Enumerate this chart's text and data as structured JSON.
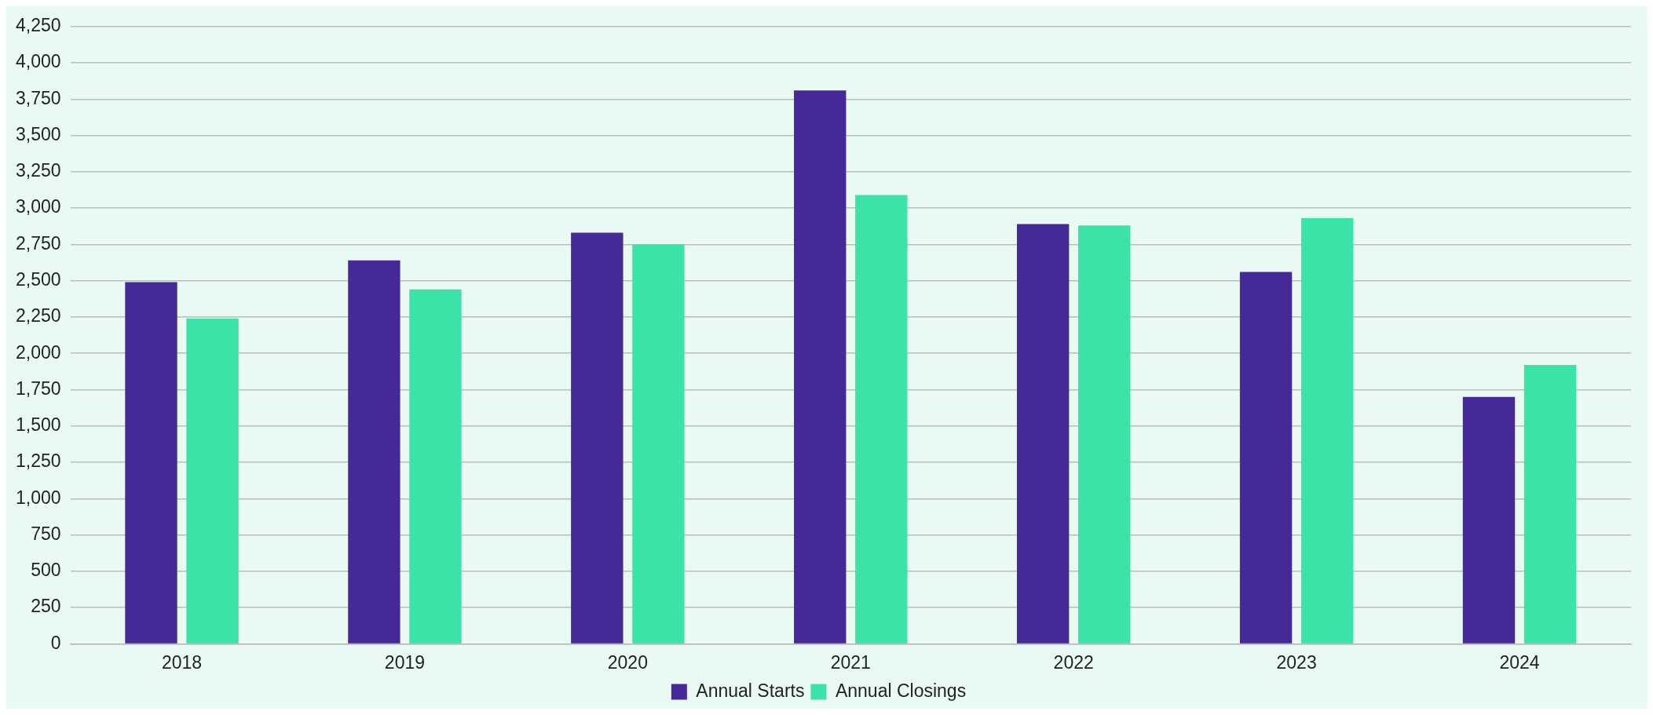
{
  "chart_data": {
    "type": "bar",
    "categories": [
      "2018",
      "2019",
      "2020",
      "2021",
      "2022",
      "2023",
      "2024"
    ],
    "series": [
      {
        "name": "Annual Starts",
        "color": "#452996",
        "values": [
          2490,
          2640,
          2830,
          3810,
          2890,
          2560,
          1700
        ]
      },
      {
        "name": "Annual Closings",
        "color": "#3be3a6",
        "values": [
          2240,
          2440,
          2750,
          3090,
          2880,
          2930,
          1920
        ]
      }
    ],
    "ylim": [
      0,
      4250
    ],
    "yticks": [
      {
        "value": 0,
        "label": "0"
      },
      {
        "value": 250,
        "label": "250"
      },
      {
        "value": 500,
        "label": "500"
      },
      {
        "value": 750,
        "label": "750"
      },
      {
        "value": 1000,
        "label": "1,000"
      },
      {
        "value": 1250,
        "label": "1,250"
      },
      {
        "value": 1500,
        "label": "1,500"
      },
      {
        "value": 1750,
        "label": "1,750"
      },
      {
        "value": 2000,
        "label": "2,000"
      },
      {
        "value": 2250,
        "label": "2,250"
      },
      {
        "value": 2500,
        "label": "2,500"
      },
      {
        "value": 2750,
        "label": "2,750"
      },
      {
        "value": 3000,
        "label": "3,000"
      },
      {
        "value": 3250,
        "label": "3,250"
      },
      {
        "value": 3500,
        "label": "3,500"
      },
      {
        "value": 3750,
        "label": "3,750"
      },
      {
        "value": 4000,
        "label": "4,000"
      },
      {
        "value": 4250,
        "label": "4,250"
      }
    ],
    "grid": "y",
    "legend": "bottom"
  }
}
